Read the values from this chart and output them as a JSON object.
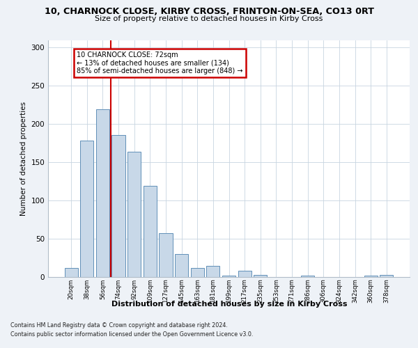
{
  "title_line1": "10, CHARNOCK CLOSE, KIRBY CROSS, FRINTON-ON-SEA, CO13 0RT",
  "title_line2": "Size of property relative to detached houses in Kirby Cross",
  "xlabel": "Distribution of detached houses by size in Kirby Cross",
  "ylabel": "Number of detached properties",
  "categories": [
    "20sqm",
    "38sqm",
    "56sqm",
    "74sqm",
    "92sqm",
    "109sqm",
    "127sqm",
    "145sqm",
    "163sqm",
    "181sqm",
    "199sqm",
    "217sqm",
    "235sqm",
    "253sqm",
    "271sqm",
    "286sqm",
    "306sqm",
    "324sqm",
    "342sqm",
    "360sqm",
    "378sqm"
  ],
  "values": [
    11,
    178,
    219,
    186,
    164,
    119,
    57,
    30,
    11,
    14,
    1,
    8,
    2,
    0,
    0,
    1,
    0,
    0,
    0,
    1,
    2
  ],
  "bar_color": "#c8d8e8",
  "bar_edge_color": "#6090b8",
  "vline_x_index": 2.5,
  "vline_color": "#cc0000",
  "annotation_text": "10 CHARNOCK CLOSE: 72sqm\n← 13% of detached houses are smaller (134)\n85% of semi-detached houses are larger (848) →",
  "annotation_box_color": "#ffffff",
  "annotation_box_edge": "#cc0000",
  "ylim": [
    0,
    310
  ],
  "yticks": [
    0,
    50,
    100,
    150,
    200,
    250,
    300
  ],
  "footer_line1": "Contains HM Land Registry data © Crown copyright and database right 2024.",
  "footer_line2": "Contains public sector information licensed under the Open Government Licence v3.0.",
  "bg_color": "#eef2f7",
  "plot_bg_color": "#ffffff",
  "grid_color": "#c8d4e0"
}
